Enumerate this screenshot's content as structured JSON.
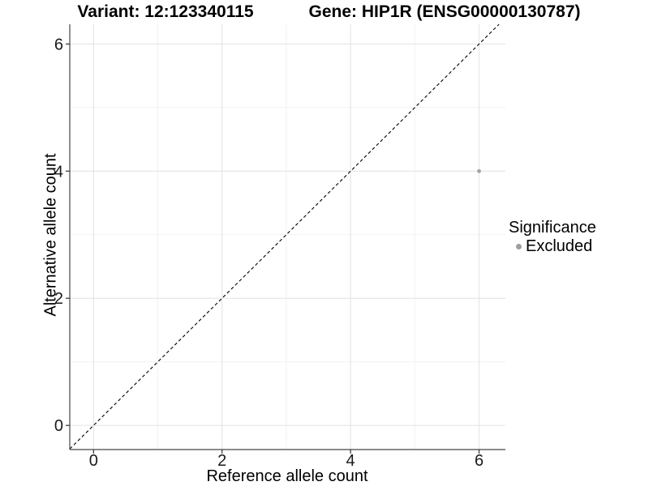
{
  "header": {
    "variant_title": "Variant: 12:123340115",
    "gene_title": "Gene: HIP1R (ENSG00000130787)"
  },
  "chart_data": {
    "type": "scatter",
    "xlabel": "Reference allele count",
    "ylabel": "Alternative allele count",
    "x_ticks": [
      0,
      2,
      4,
      6
    ],
    "y_ticks": [
      0,
      2,
      4,
      6
    ],
    "x_minor_breaks": [
      1,
      3,
      5
    ],
    "y_minor_breaks": [
      1,
      3,
      5
    ],
    "xlim": [
      -0.37,
      6.41
    ],
    "ylim": [
      -0.38,
      6.31
    ],
    "grid": true,
    "points": [
      {
        "x": 6,
        "y": 4,
        "series": "Excluded"
      }
    ],
    "reference_line": {
      "slope": 1,
      "intercept": 0,
      "style": "dashed"
    },
    "legend": {
      "position": "right",
      "title": "Significance",
      "entries": [
        {
          "label": "Excluded",
          "color": "#9e9e9e"
        }
      ]
    }
  },
  "colors": {
    "background": "#ffffff",
    "point": "#a1a1a1",
    "legend_dot": "#9e9e9e",
    "grid_major": "#e6e6e6",
    "grid_minor": "#f1f1f1",
    "axis_line": "#464646",
    "tick_mark": "#333333",
    "tick_label": "#1a1a1a",
    "reference_line": "#000000"
  }
}
